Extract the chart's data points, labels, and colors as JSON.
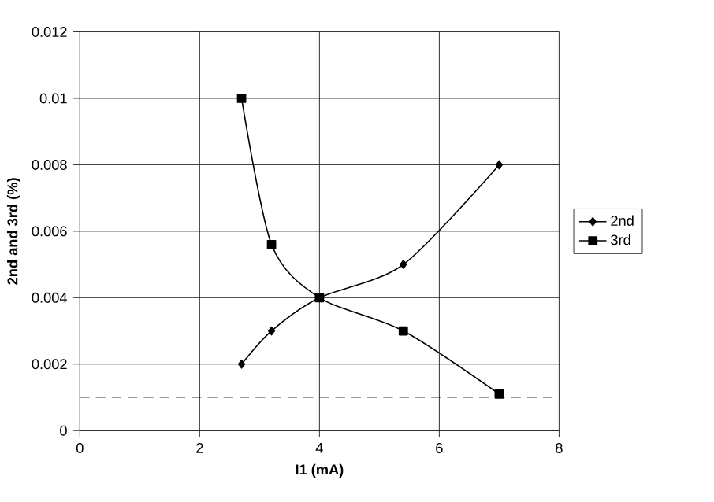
{
  "chart_data": {
    "type": "line",
    "xlabel": "I1 (mA)",
    "ylabel": "2nd and 3rd (%)",
    "xlim": [
      0,
      8
    ],
    "xticks": [
      0,
      2,
      4,
      6,
      8
    ],
    "ylim": [
      0,
      0.012
    ],
    "yticks": [
      0,
      0.002,
      0.004,
      0.006,
      0.008,
      0.01,
      0.012
    ],
    "grid": true,
    "legend": "right",
    "series": [
      {
        "name": "2nd",
        "color": "#000000",
        "marker": "diamond",
        "x": [
          2.7,
          3.2,
          4,
          5.4,
          7
        ],
        "values": [
          0.002,
          0.003,
          0.004,
          0.005,
          0.008
        ]
      },
      {
        "name": "3rd",
        "color": "#000000",
        "marker": "square",
        "x": [
          2.7,
          3.2,
          4,
          5.4,
          7
        ],
        "values": [
          0.01,
          0.0056,
          0.004,
          0.003,
          0.0011
        ]
      }
    ],
    "ref_lines": [
      {
        "axis": "y",
        "value": 0.001,
        "line_style": "dashed",
        "color": "#000000"
      }
    ]
  }
}
